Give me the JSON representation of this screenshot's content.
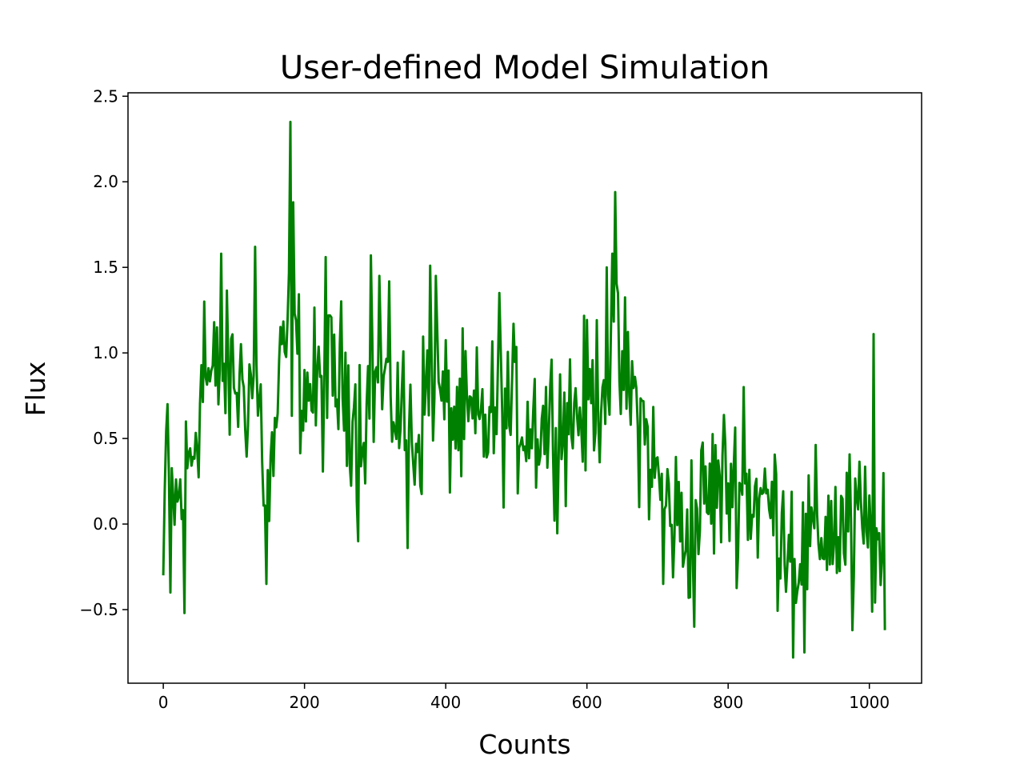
{
  "chart_data": {
    "type": "line",
    "title": "User-defined Model Simulation",
    "xlabel": "Counts",
    "ylabel": "Flux",
    "xlim": [
      -50,
      1074
    ],
    "ylim": [
      -0.93,
      2.52
    ],
    "x_ticks": [
      0,
      200,
      400,
      600,
      800,
      1000
    ],
    "x_tick_labels": [
      "0",
      "200",
      "400",
      "600",
      "800",
      "1000"
    ],
    "y_ticks": [
      -0.5,
      0.0,
      0.5,
      1.0,
      1.5,
      2.0,
      2.5
    ],
    "y_tick_labels": [
      "−0.5",
      "0.0",
      "0.5",
      "1.0",
      "1.5",
      "2.0",
      "2.5"
    ],
    "grid": false,
    "series": [
      {
        "name": "Flux",
        "color": "#008000",
        "x_start": 0,
        "x_step": 2,
        "anchors": [
          [
            0,
            0.15
          ],
          [
            10,
            0.15
          ],
          [
            20,
            0.1
          ],
          [
            30,
            0.25
          ],
          [
            40,
            0.4
          ],
          [
            50,
            0.7
          ],
          [
            60,
            0.85
          ],
          [
            70,
            0.8
          ],
          [
            80,
            0.9
          ],
          [
            90,
            0.85
          ],
          [
            100,
            0.85
          ],
          [
            110,
            0.8
          ],
          [
            120,
            0.8
          ],
          [
            130,
            0.85
          ],
          [
            140,
            0.55
          ],
          [
            145,
            0.1
          ],
          [
            150,
            0.15
          ],
          [
            160,
            0.6
          ],
          [
            170,
            0.95
          ],
          [
            180,
            1.1
          ],
          [
            190,
            0.95
          ],
          [
            200,
            0.8
          ],
          [
            220,
            0.75
          ],
          [
            240,
            0.85
          ],
          [
            260,
            0.8
          ],
          [
            280,
            0.6
          ],
          [
            300,
            0.85
          ],
          [
            320,
            0.8
          ],
          [
            340,
            0.6
          ],
          [
            360,
            0.5
          ],
          [
            380,
            0.9
          ],
          [
            400,
            0.65
          ],
          [
            420,
            0.6
          ],
          [
            440,
            0.55
          ],
          [
            460,
            0.6
          ],
          [
            480,
            0.65
          ],
          [
            500,
            0.65
          ],
          [
            520,
            0.6
          ],
          [
            540,
            0.6
          ],
          [
            560,
            0.6
          ],
          [
            580,
            0.65
          ],
          [
            600,
            0.7
          ],
          [
            620,
            0.85
          ],
          [
            640,
            0.95
          ],
          [
            660,
            0.8
          ],
          [
            680,
            0.55
          ],
          [
            700,
            0.25
          ],
          [
            720,
            0.05
          ],
          [
            740,
            -0.05
          ],
          [
            760,
            0.1
          ],
          [
            780,
            0.2
          ],
          [
            800,
            0.25
          ],
          [
            820,
            0.2
          ],
          [
            840,
            0.15
          ],
          [
            860,
            0.1
          ],
          [
            880,
            0.0
          ],
          [
            900,
            -0.15
          ],
          [
            920,
            -0.1
          ],
          [
            940,
            0.0
          ],
          [
            960,
            -0.05
          ],
          [
            980,
            0.0
          ],
          [
            1000,
            -0.05
          ],
          [
            1023,
            -0.3
          ]
        ],
        "noise_amplitude": 0.23,
        "spikes": [
          [
            0,
            -0.3
          ],
          [
            5,
            0.7
          ],
          [
            10,
            -0.4
          ],
          [
            30,
            -0.52
          ],
          [
            58,
            1.3
          ],
          [
            82,
            1.58
          ],
          [
            130,
            1.62
          ],
          [
            146,
            -0.35
          ],
          [
            180,
            2.35
          ],
          [
            184,
            1.88
          ],
          [
            230,
            1.56
          ],
          [
            276,
            -0.1
          ],
          [
            293,
            1.57
          ],
          [
            305,
            1.45
          ],
          [
            345,
            -0.14
          ],
          [
            378,
            1.51
          ],
          [
            385,
            1.45
          ],
          [
            475,
            1.35
          ],
          [
            640,
            1.94
          ],
          [
            636,
            1.58
          ],
          [
            628,
            1.5
          ],
          [
            707,
            -0.35
          ],
          [
            752,
            -0.6
          ],
          [
            822,
            0.8
          ],
          [
            892,
            -0.78
          ],
          [
            908,
            -0.75
          ],
          [
            975,
            -0.62
          ],
          [
            1005,
            1.11
          ],
          [
            1022,
            -0.62
          ]
        ]
      }
    ]
  }
}
